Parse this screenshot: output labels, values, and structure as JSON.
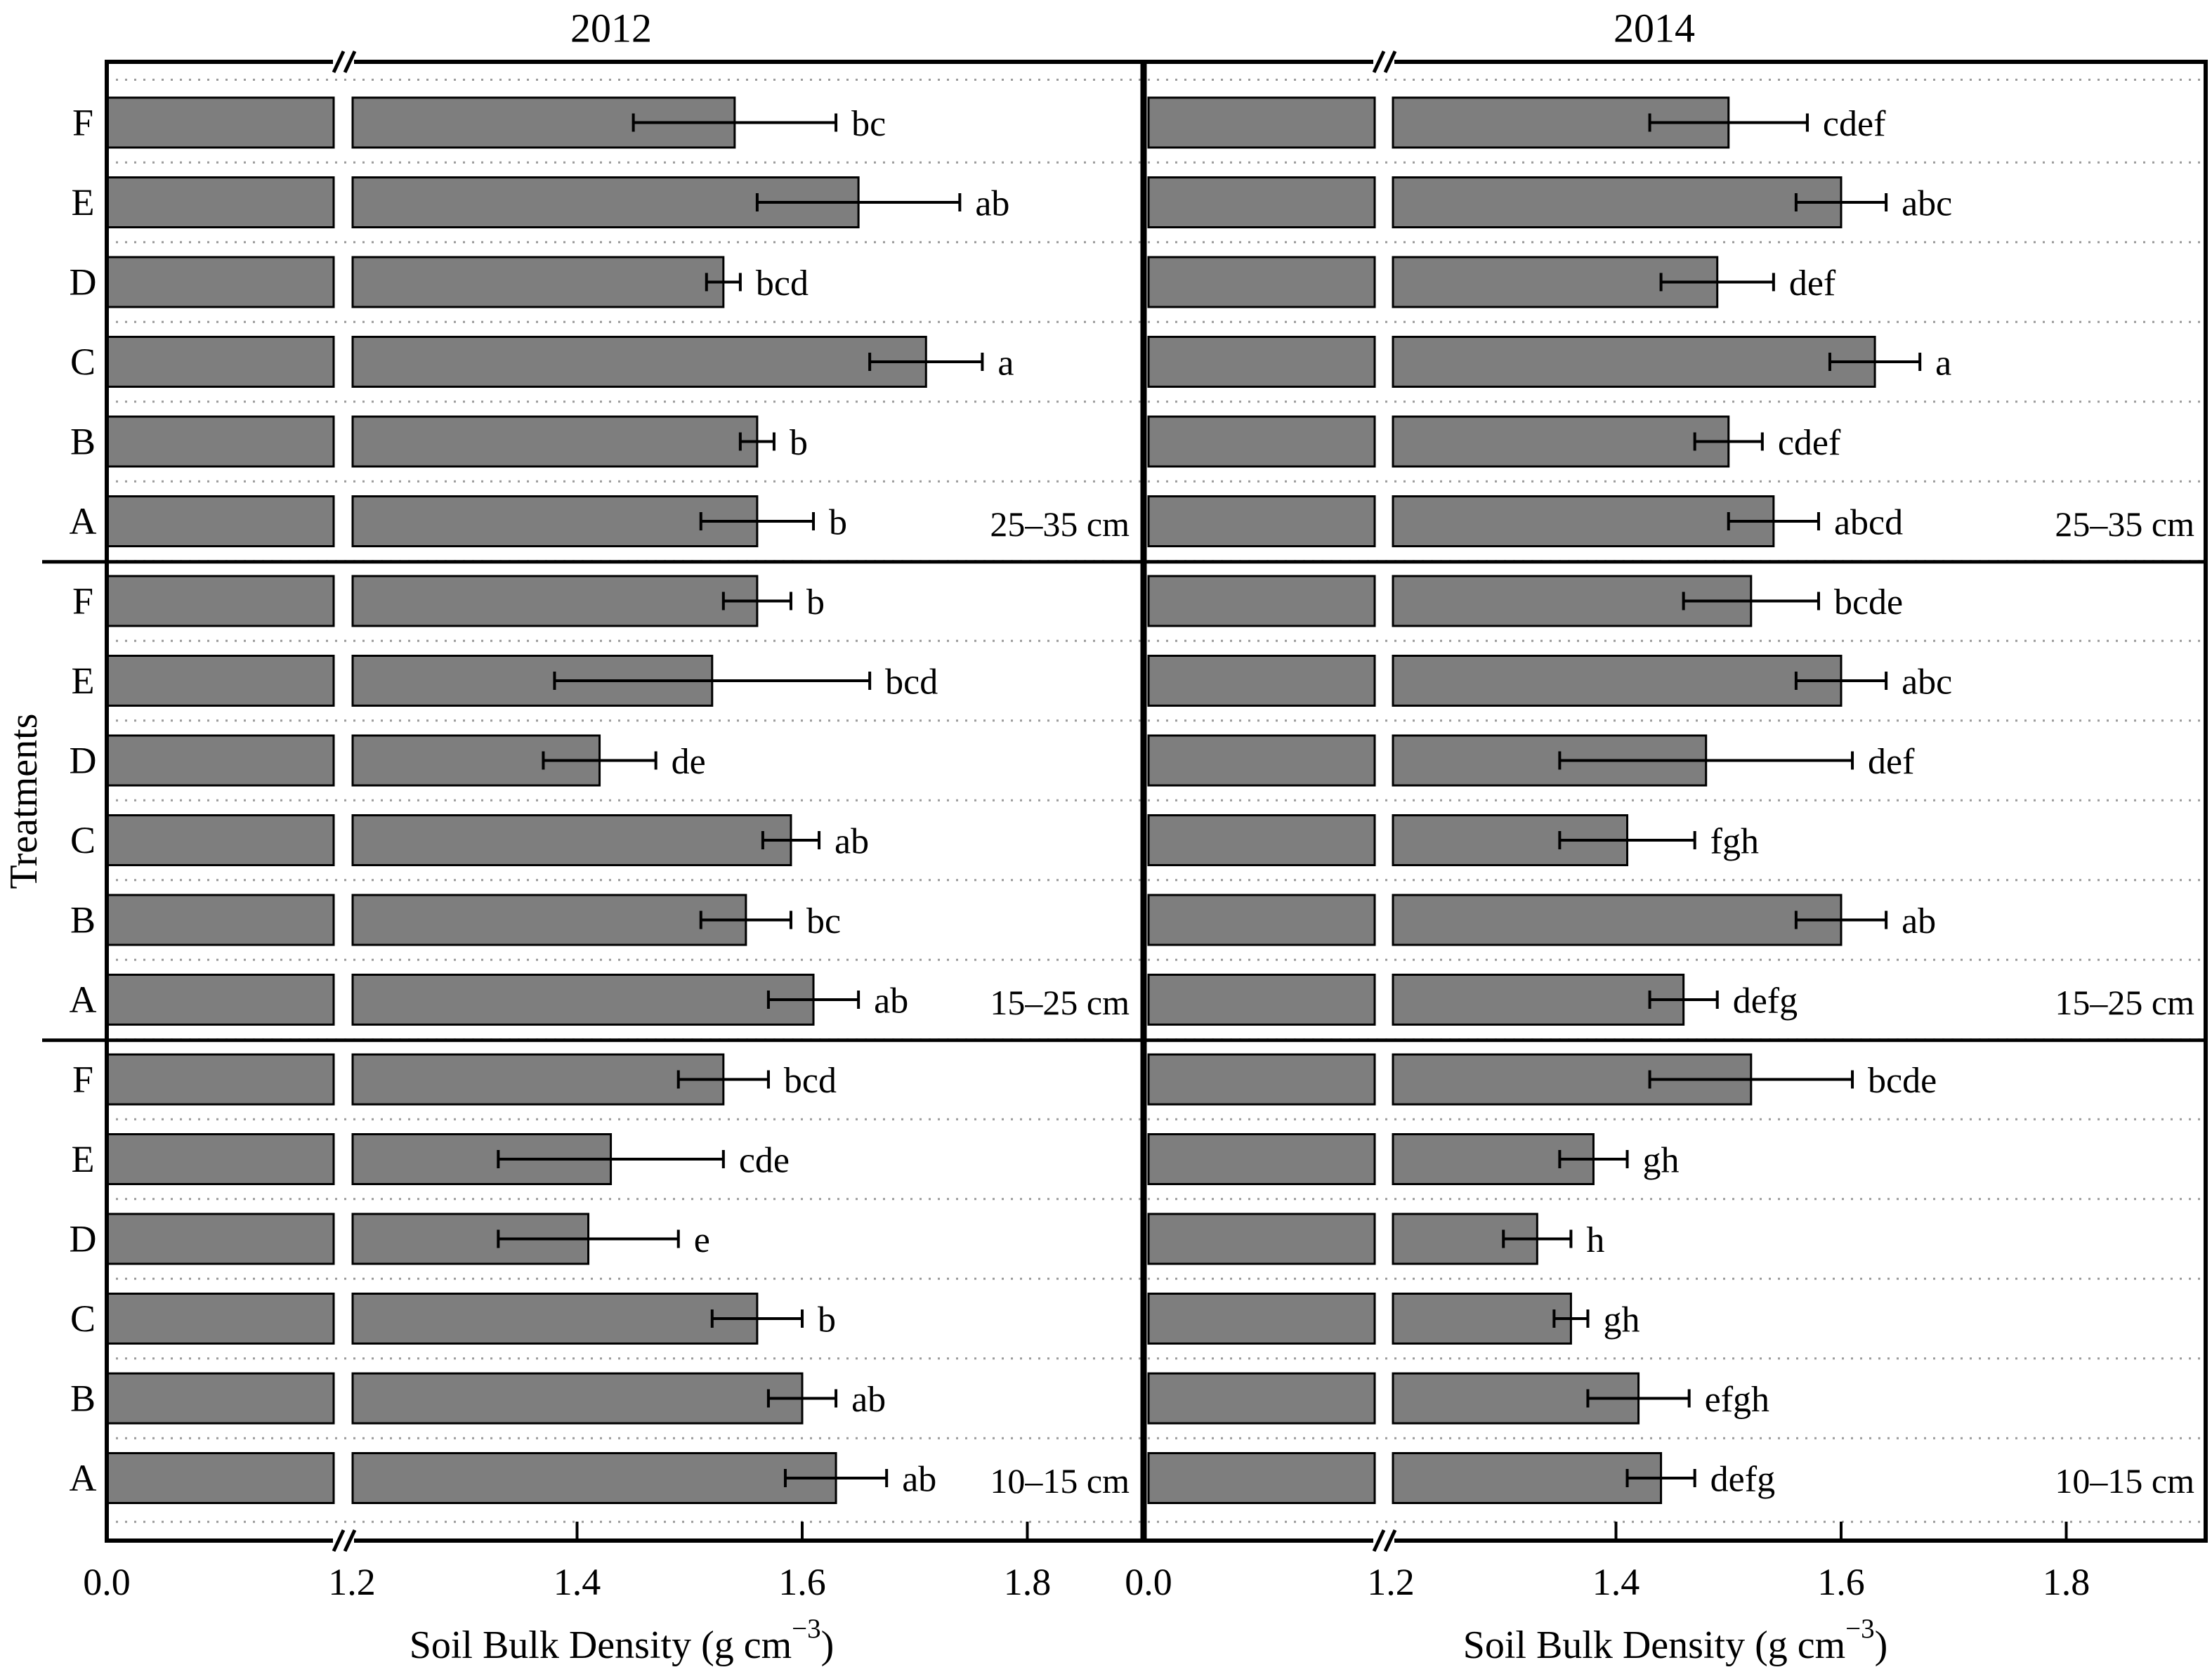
{
  "chart_data": {
    "type": "bar",
    "orientation": "horizontal",
    "ylabel": "Treatments",
    "xlabel_main": "Soil Bulk Density (g cm",
    "xlabel_sup": "−3",
    "xlabel_close": ")",
    "x_ticks": [
      {
        "label": "0.0",
        "value": 0.0
      },
      {
        "label": "1.2",
        "value": 1.2
      },
      {
        "label": "1.4",
        "value": 1.4
      },
      {
        "label": "1.6",
        "value": 1.6
      },
      {
        "label": "1.8",
        "value": 1.8
      }
    ],
    "axis_break": {
      "between": [
        0.0,
        1.2
      ],
      "note": "broken x axis, compressed 0-1.2 segment"
    },
    "xlim_after_break": [
      1.2,
      1.92
    ],
    "grid": "dotted horizontal separators between bars",
    "legend_position": "none",
    "treatments_top_to_bottom": [
      "F",
      "E",
      "D",
      "C",
      "B",
      "A"
    ],
    "colors": {
      "bar_fill": "#7e7e7e",
      "bar_stroke": "#000000",
      "grid_dotted": "#9a9a9a",
      "axis": "#000000",
      "background": "#ffffff"
    },
    "panels": [
      {
        "title": "2012",
        "groups": [
          {
            "depth_label": "25–35 cm",
            "bars": [
              {
                "treatment": "F",
                "value": 1.54,
                "error": 0.09,
                "sig": "bc"
              },
              {
                "treatment": "E",
                "value": 1.65,
                "error": 0.09,
                "sig": "ab"
              },
              {
                "treatment": "D",
                "value": 1.53,
                "error": 0.015,
                "sig": "bcd"
              },
              {
                "treatment": "C",
                "value": 1.71,
                "error": 0.05,
                "sig": "a"
              },
              {
                "treatment": "B",
                "value": 1.56,
                "error": 0.015,
                "sig": "b"
              },
              {
                "treatment": "A",
                "value": 1.56,
                "error": 0.05,
                "sig": "b"
              }
            ]
          },
          {
            "depth_label": "15–25 cm",
            "bars": [
              {
                "treatment": "F",
                "value": 1.56,
                "error": 0.03,
                "sig": "b"
              },
              {
                "treatment": "E",
                "value": 1.52,
                "error": 0.14,
                "sig": "bcd"
              },
              {
                "treatment": "D",
                "value": 1.42,
                "error": 0.05,
                "sig": "de"
              },
              {
                "treatment": "C",
                "value": 1.59,
                "error": 0.025,
                "sig": "ab"
              },
              {
                "treatment": "B",
                "value": 1.55,
                "error": 0.04,
                "sig": "bc"
              },
              {
                "treatment": "A",
                "value": 1.61,
                "error": 0.04,
                "sig": "ab"
              }
            ]
          },
          {
            "depth_label": "10–15 cm",
            "bars": [
              {
                "treatment": "F",
                "value": 1.53,
                "error": 0.04,
                "sig": "bcd"
              },
              {
                "treatment": "E",
                "value": 1.43,
                "error": 0.1,
                "sig": "cde"
              },
              {
                "treatment": "D",
                "value": 1.41,
                "error": 0.08,
                "sig": "e"
              },
              {
                "treatment": "C",
                "value": 1.56,
                "error": 0.04,
                "sig": "b"
              },
              {
                "treatment": "B",
                "value": 1.6,
                "error": 0.03,
                "sig": "ab"
              },
              {
                "treatment": "A",
                "value": 1.63,
                "error": 0.045,
                "sig": "ab"
              }
            ]
          }
        ]
      },
      {
        "title": "2014",
        "groups": [
          {
            "depth_label": "25–35 cm",
            "bars": [
              {
                "treatment": "F",
                "value": 1.5,
                "error": 0.07,
                "sig": "cdef"
              },
              {
                "treatment": "E",
                "value": 1.6,
                "error": 0.04,
                "sig": "abc"
              },
              {
                "treatment": "D",
                "value": 1.49,
                "error": 0.05,
                "sig": "def"
              },
              {
                "treatment": "C",
                "value": 1.63,
                "error": 0.04,
                "sig": "a"
              },
              {
                "treatment": "B",
                "value": 1.5,
                "error": 0.03,
                "sig": "cdef"
              },
              {
                "treatment": "A",
                "value": 1.54,
                "error": 0.04,
                "sig": "abcd"
              }
            ]
          },
          {
            "depth_label": "15–25 cm",
            "bars": [
              {
                "treatment": "F",
                "value": 1.52,
                "error": 0.06,
                "sig": "bcde"
              },
              {
                "treatment": "E",
                "value": 1.6,
                "error": 0.04,
                "sig": "abc"
              },
              {
                "treatment": "D",
                "value": 1.48,
                "error": 0.13,
                "sig": "def"
              },
              {
                "treatment": "C",
                "value": 1.41,
                "error": 0.06,
                "sig": "fgh"
              },
              {
                "treatment": "B",
                "value": 1.6,
                "error": 0.04,
                "sig": "ab"
              },
              {
                "treatment": "A",
                "value": 1.46,
                "error": 0.03,
                "sig": "defg"
              }
            ]
          },
          {
            "depth_label": "10–15 cm",
            "bars": [
              {
                "treatment": "F",
                "value": 1.52,
                "error": 0.09,
                "sig": "bcde"
              },
              {
                "treatment": "E",
                "value": 1.38,
                "error": 0.03,
                "sig": "gh"
              },
              {
                "treatment": "D",
                "value": 1.33,
                "error": 0.03,
                "sig": "h"
              },
              {
                "treatment": "C",
                "value": 1.36,
                "error": 0.015,
                "sig": "gh"
              },
              {
                "treatment": "B",
                "value": 1.42,
                "error": 0.045,
                "sig": "efgh"
              },
              {
                "treatment": "A",
                "value": 1.44,
                "error": 0.03,
                "sig": "defg"
              }
            ]
          }
        ]
      }
    ]
  }
}
